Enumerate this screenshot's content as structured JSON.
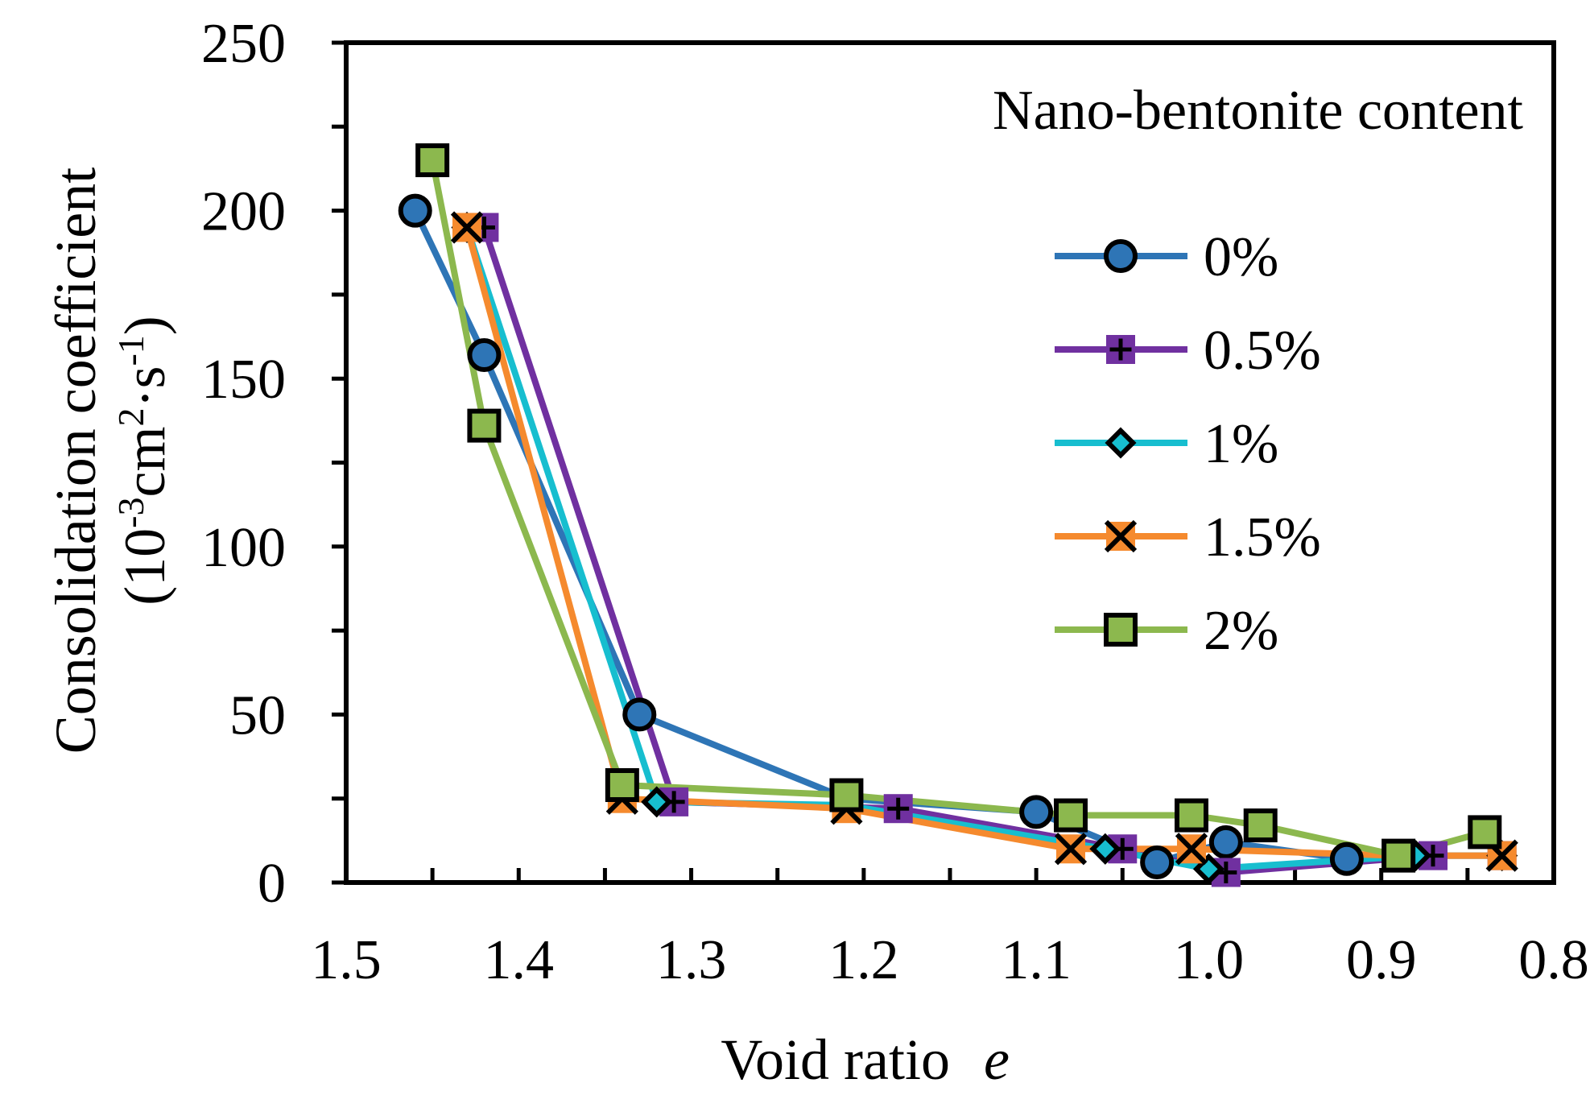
{
  "chart_data": {
    "type": "line",
    "legend_title": "Nano-bentonite content",
    "legend_position": "right",
    "xlabel": "Void ratio",
    "xlabel_italic_symbol": "e",
    "ylabel_line1": "Consolidation coefficient",
    "ylabel_line2_prefix": "(10",
    "ylabel_line2_sup1": "-3",
    "ylabel_line2_mid": "cm",
    "ylabel_line2_sup2": "2",
    "ylabel_line2_mid2": "·s",
    "ylabel_line2_sup3": "-1",
    "ylabel_line2_suffix": ")",
    "xlim": [
      1.5,
      0.8
    ],
    "x_reversed": true,
    "ylim": [
      0,
      250
    ],
    "x_ticks": [
      "1.5",
      "1.4",
      "1.3",
      "1.2",
      "1.1",
      "1.0",
      "0.9",
      "0.8"
    ],
    "x_tick_values": [
      1.5,
      1.4,
      1.3,
      1.2,
      1.1,
      1.0,
      0.9,
      0.8
    ],
    "y_ticks": [
      "0",
      "50",
      "100",
      "150",
      "200",
      "250"
    ],
    "y_tick_values": [
      0,
      50,
      100,
      150,
      200,
      250
    ],
    "grid": false,
    "series": [
      {
        "name": "0%",
        "color": "#2e75b6",
        "marker": "circle",
        "marker_fill": "#2e75b6",
        "x": [
          1.46,
          1.42,
          1.33,
          1.21,
          1.1,
          1.03,
          0.99,
          0.92
        ],
        "y": [
          200,
          157,
          50,
          25,
          21,
          6,
          12,
          7
        ]
      },
      {
        "name": "0.5%",
        "color": "#7030a0",
        "marker": "square-plus",
        "marker_fill": "#7030a0",
        "x": [
          1.42,
          1.31,
          1.18,
          1.05,
          0.99,
          0.87,
          0.83
        ],
        "y": [
          195,
          24,
          22,
          10,
          3,
          8,
          8
        ]
      },
      {
        "name": "1%",
        "color": "#17becf",
        "marker": "diamond",
        "marker_fill": "#17becf",
        "x": [
          1.43,
          1.32,
          1.21,
          1.06,
          1.0,
          0.88,
          0.83
        ],
        "y": [
          195,
          24,
          23,
          10,
          4,
          8,
          8
        ]
      },
      {
        "name": "1.5%",
        "color": "#f58a2e",
        "marker": "x",
        "marker_fill": "#f58a2e",
        "x": [
          1.43,
          1.34,
          1.21,
          1.08,
          1.01,
          0.89,
          0.83
        ],
        "y": [
          195,
          25,
          22,
          10,
          10,
          8,
          8
        ]
      },
      {
        "name": "2%",
        "color": "#8cb84e",
        "marker": "square",
        "marker_fill": "#8cb84e",
        "x": [
          1.45,
          1.42,
          1.34,
          1.21,
          1.08,
          1.01,
          0.97,
          0.89,
          0.84
        ],
        "y": [
          215,
          136,
          29,
          26,
          20,
          20,
          17,
          8,
          15
        ]
      }
    ]
  }
}
